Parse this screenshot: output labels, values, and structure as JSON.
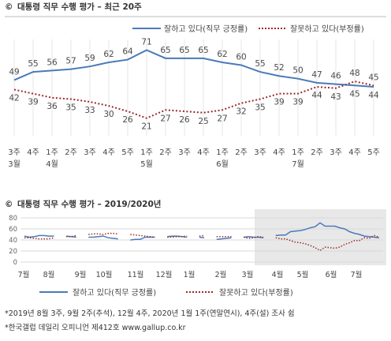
{
  "chart_data": [
    {
      "type": "line",
      "title": "대통령 직무 수행 평가 – 최근 20주",
      "title_icon": "©",
      "x": [
        "3주\n3월",
        "4주",
        "1주\n4월",
        "2주",
        "3주",
        "4주",
        "5주",
        "1주\n5월",
        "2주",
        "3주",
        "4주",
        "1주\n6월",
        "2주",
        "3주",
        "4주",
        "1주\n7월",
        "2주",
        "3주",
        "4주",
        "5주"
      ],
      "series": [
        {
          "name": "잘하고 있다(직무 긍정률)",
          "color": "#4a7ab9",
          "style": "solid",
          "values": [
            49,
            55,
            56,
            57,
            59,
            62,
            64,
            71,
            65,
            65,
            65,
            62,
            60,
            55,
            52,
            50,
            47,
            46,
            45,
            44
          ]
        },
        {
          "name": "잘못하고 있다(부정률)",
          "color": "#9b2a2a",
          "style": "dotted",
          "values": [
            42,
            39,
            36,
            35,
            33,
            30,
            26,
            21,
            27,
            26,
            25,
            27,
            32,
            35,
            39,
            39,
            44,
            43,
            48,
            45
          ]
        }
      ],
      "legend_position": "top-right",
      "ylim": [
        15,
        80
      ]
    },
    {
      "type": "line",
      "title": "대통령 직무 수행 평가 – 2019/2020년",
      "title_icon": "©",
      "yticks": [
        0,
        20,
        40,
        60,
        80
      ],
      "ylim": [
        0,
        80
      ],
      "month_labels": [
        "7월",
        "8월",
        "9월",
        "10월",
        "11월",
        "12월",
        "1월",
        "2월",
        "3월",
        "4월",
        "5월",
        "6월",
        "7월"
      ],
      "series": [
        {
          "name": "잘하고 있다(직무 긍정률)",
          "color": "#4a7ab9",
          "style": "solid",
          "segments": [
            [
              47,
              45,
              46,
              48,
              48,
              47,
              47
            ],
            [
              47,
              46,
              45
            ],
            [
              45,
              45,
              46,
              47,
              44,
              43,
              42
            ],
            [
              40,
              41,
              41,
              45,
              45,
              45
            ],
            [
              46,
              47,
              47,
              46,
              45
            ],
            [
              45,
              44
            ],
            [
              41,
              42,
              43,
              44
            ],
            [
              45,
              46,
              45,
              45,
              44
            ],
            [
              48,
              49,
              49,
              55,
              56,
              57,
              59,
              62,
              64,
              71,
              65,
              65,
              65,
              62,
              60,
              55,
              52,
              50,
              47,
              46,
              45,
              44
            ]
          ]
        },
        {
          "name": "잘못하고 있다(부정률)",
          "color": "#9b2a2a",
          "style": "dotted",
          "segments": [
            [
              44,
              44,
              43,
              42,
              42,
              42,
              44
            ],
            [
              46,
              46,
              48
            ],
            [
              50,
              51,
              51,
              50,
              52,
              52,
              51
            ],
            [
              50,
              49,
              48,
              47,
              46,
              45
            ],
            [
              45,
              45,
              46,
              46,
              47
            ],
            [
              47,
              48
            ],
            [
              46,
              46,
              46,
              46
            ],
            [
              45,
              43,
              44,
              46,
              45
            ],
            [
              44,
              42,
              42,
              39,
              36,
              35,
              33,
              30,
              26,
              21,
              27,
              26,
              25,
              27,
              32,
              35,
              39,
              39,
              44,
              43,
              48,
              45
            ]
          ]
        }
      ],
      "highlight": "recent 20 weeks"
    }
  ],
  "footnotes": [
    "*2019년 8월 3주, 9월 2주(추석), 12월 4주, 2020년 1월 1주(연말연시), 4주(설) 조사 쉼",
    "*한국갤럽 데일리 오피니언 제412호 www.gallup.co.kr"
  ]
}
